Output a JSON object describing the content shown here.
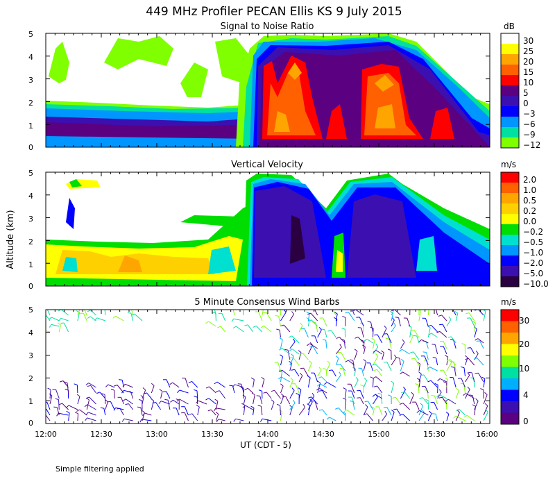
{
  "title": "449 MHz Profiler PECAN Ellis KS  9 July 2015",
  "ylabel": "Altitude (km)",
  "xlabel": "UT  (CDT - 5)",
  "footnote": "Simple filtering applied",
  "x_ticks": [
    "12:00",
    "12:30",
    "13:00",
    "13:30",
    "14:00",
    "14:30",
    "15:00",
    "15:30",
    "16:00"
  ],
  "y_ticks": [
    "0",
    "1",
    "2",
    "3",
    "4",
    "5"
  ],
  "chart_data": [
    {
      "type": "heatmap",
      "title": "Signal to Noise Ratio",
      "colorbar_unit": "dB",
      "colorbar_levels": [
        "30",
        "25",
        "20",
        "15",
        "10",
        "5",
        "0",
        "−3",
        "−6",
        "−9",
        "−12"
      ],
      "colorbar_colors": [
        "#ffffff",
        "#ffff00",
        "#ffa500",
        "#ff6000",
        "#ff0000",
        "#5a0080",
        "#3c0fb0",
        "#0000ff",
        "#0096ff",
        "#00e0a0",
        "#80ff00"
      ],
      "x_range": [
        "12:00",
        "16:00"
      ],
      "y_range": [
        0,
        5
      ],
      "grid": false
    },
    {
      "type": "heatmap",
      "title": "Vertical Velocity",
      "colorbar_unit": "m/s",
      "colorbar_levels": [
        "2.0",
        "1.0",
        "0.5",
        "0.2",
        "0.0",
        "−0.2",
        "−0.5",
        "−1.0",
        "−2.0",
        "−5.0",
        "−10.0"
      ],
      "colorbar_colors": [
        "#ff0000",
        "#ff6000",
        "#ffa500",
        "#ffd000",
        "#ffff00",
        "#00dd00",
        "#00e0d0",
        "#0096ff",
        "#0000ff",
        "#3c0fb0",
        "#2a0040"
      ],
      "x_range": [
        "12:00",
        "16:00"
      ],
      "y_range": [
        0,
        5
      ],
      "grid": false
    },
    {
      "type": "scatter",
      "title": "5 Minute Consensus Wind Barbs",
      "colorbar_unit": "m/s",
      "colorbar_levels": [
        "30",
        "20",
        "10",
        "4",
        "0"
      ],
      "colorbar_colors": [
        "#ff0000",
        "#ff6000",
        "#ffa500",
        "#ffff00",
        "#80ff00",
        "#00e0a0",
        "#00b0ff",
        "#0000ff",
        "#3c0fb0",
        "#5a0080"
      ],
      "x_range": [
        "12:00",
        "16:00"
      ],
      "y_range": [
        0,
        5
      ],
      "grid": false
    }
  ]
}
